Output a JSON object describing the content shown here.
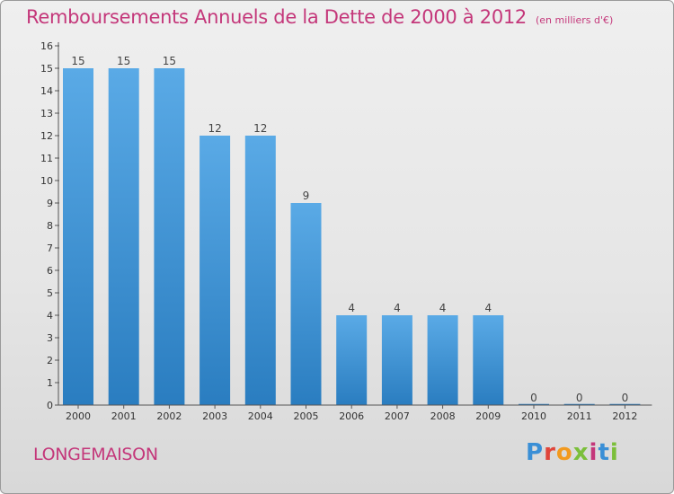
{
  "header": {
    "title": "Remboursements Annuels de la Dette de 2000 à 2012",
    "subtitle": "(en milliers d'€)"
  },
  "footer": {
    "commune": "LONGEMAISON",
    "logo_text": "Proxiti"
  },
  "colors": {
    "title": "#c4377a",
    "bar_top": "#5aaae6",
    "bar_bottom": "#2a7dc0",
    "logo": [
      "#3a8fd6",
      "#e0453a",
      "#f29a1f",
      "#7bbf3a",
      "#c4377a",
      "#3a8fd6",
      "#7bbf3a"
    ]
  },
  "chart_data": {
    "type": "bar",
    "title": "Remboursements Annuels de la Dette de 2000 à 2012",
    "subtitle": "(en milliers d'€)",
    "xlabel": "",
    "ylabel": "",
    "categories": [
      "2000",
      "2001",
      "2002",
      "2003",
      "2004",
      "2005",
      "2006",
      "2007",
      "2008",
      "2009",
      "2010",
      "2011",
      "2012"
    ],
    "values": [
      15,
      15,
      15,
      12,
      12,
      9,
      4,
      4,
      4,
      4,
      0,
      0,
      0
    ],
    "data_labels": [
      "15",
      "15",
      "15",
      "12",
      "12",
      "9",
      "4",
      "4",
      "4",
      "4",
      "0",
      "0",
      "0"
    ],
    "y_ticks": [
      "0",
      "1",
      "2",
      "3",
      "4",
      "5",
      "6",
      "7",
      "8",
      "9",
      "10",
      "11",
      "12",
      "13",
      "14",
      "15",
      "16"
    ],
    "ylim": [
      0,
      16
    ],
    "grid": false,
    "legend": "none"
  }
}
